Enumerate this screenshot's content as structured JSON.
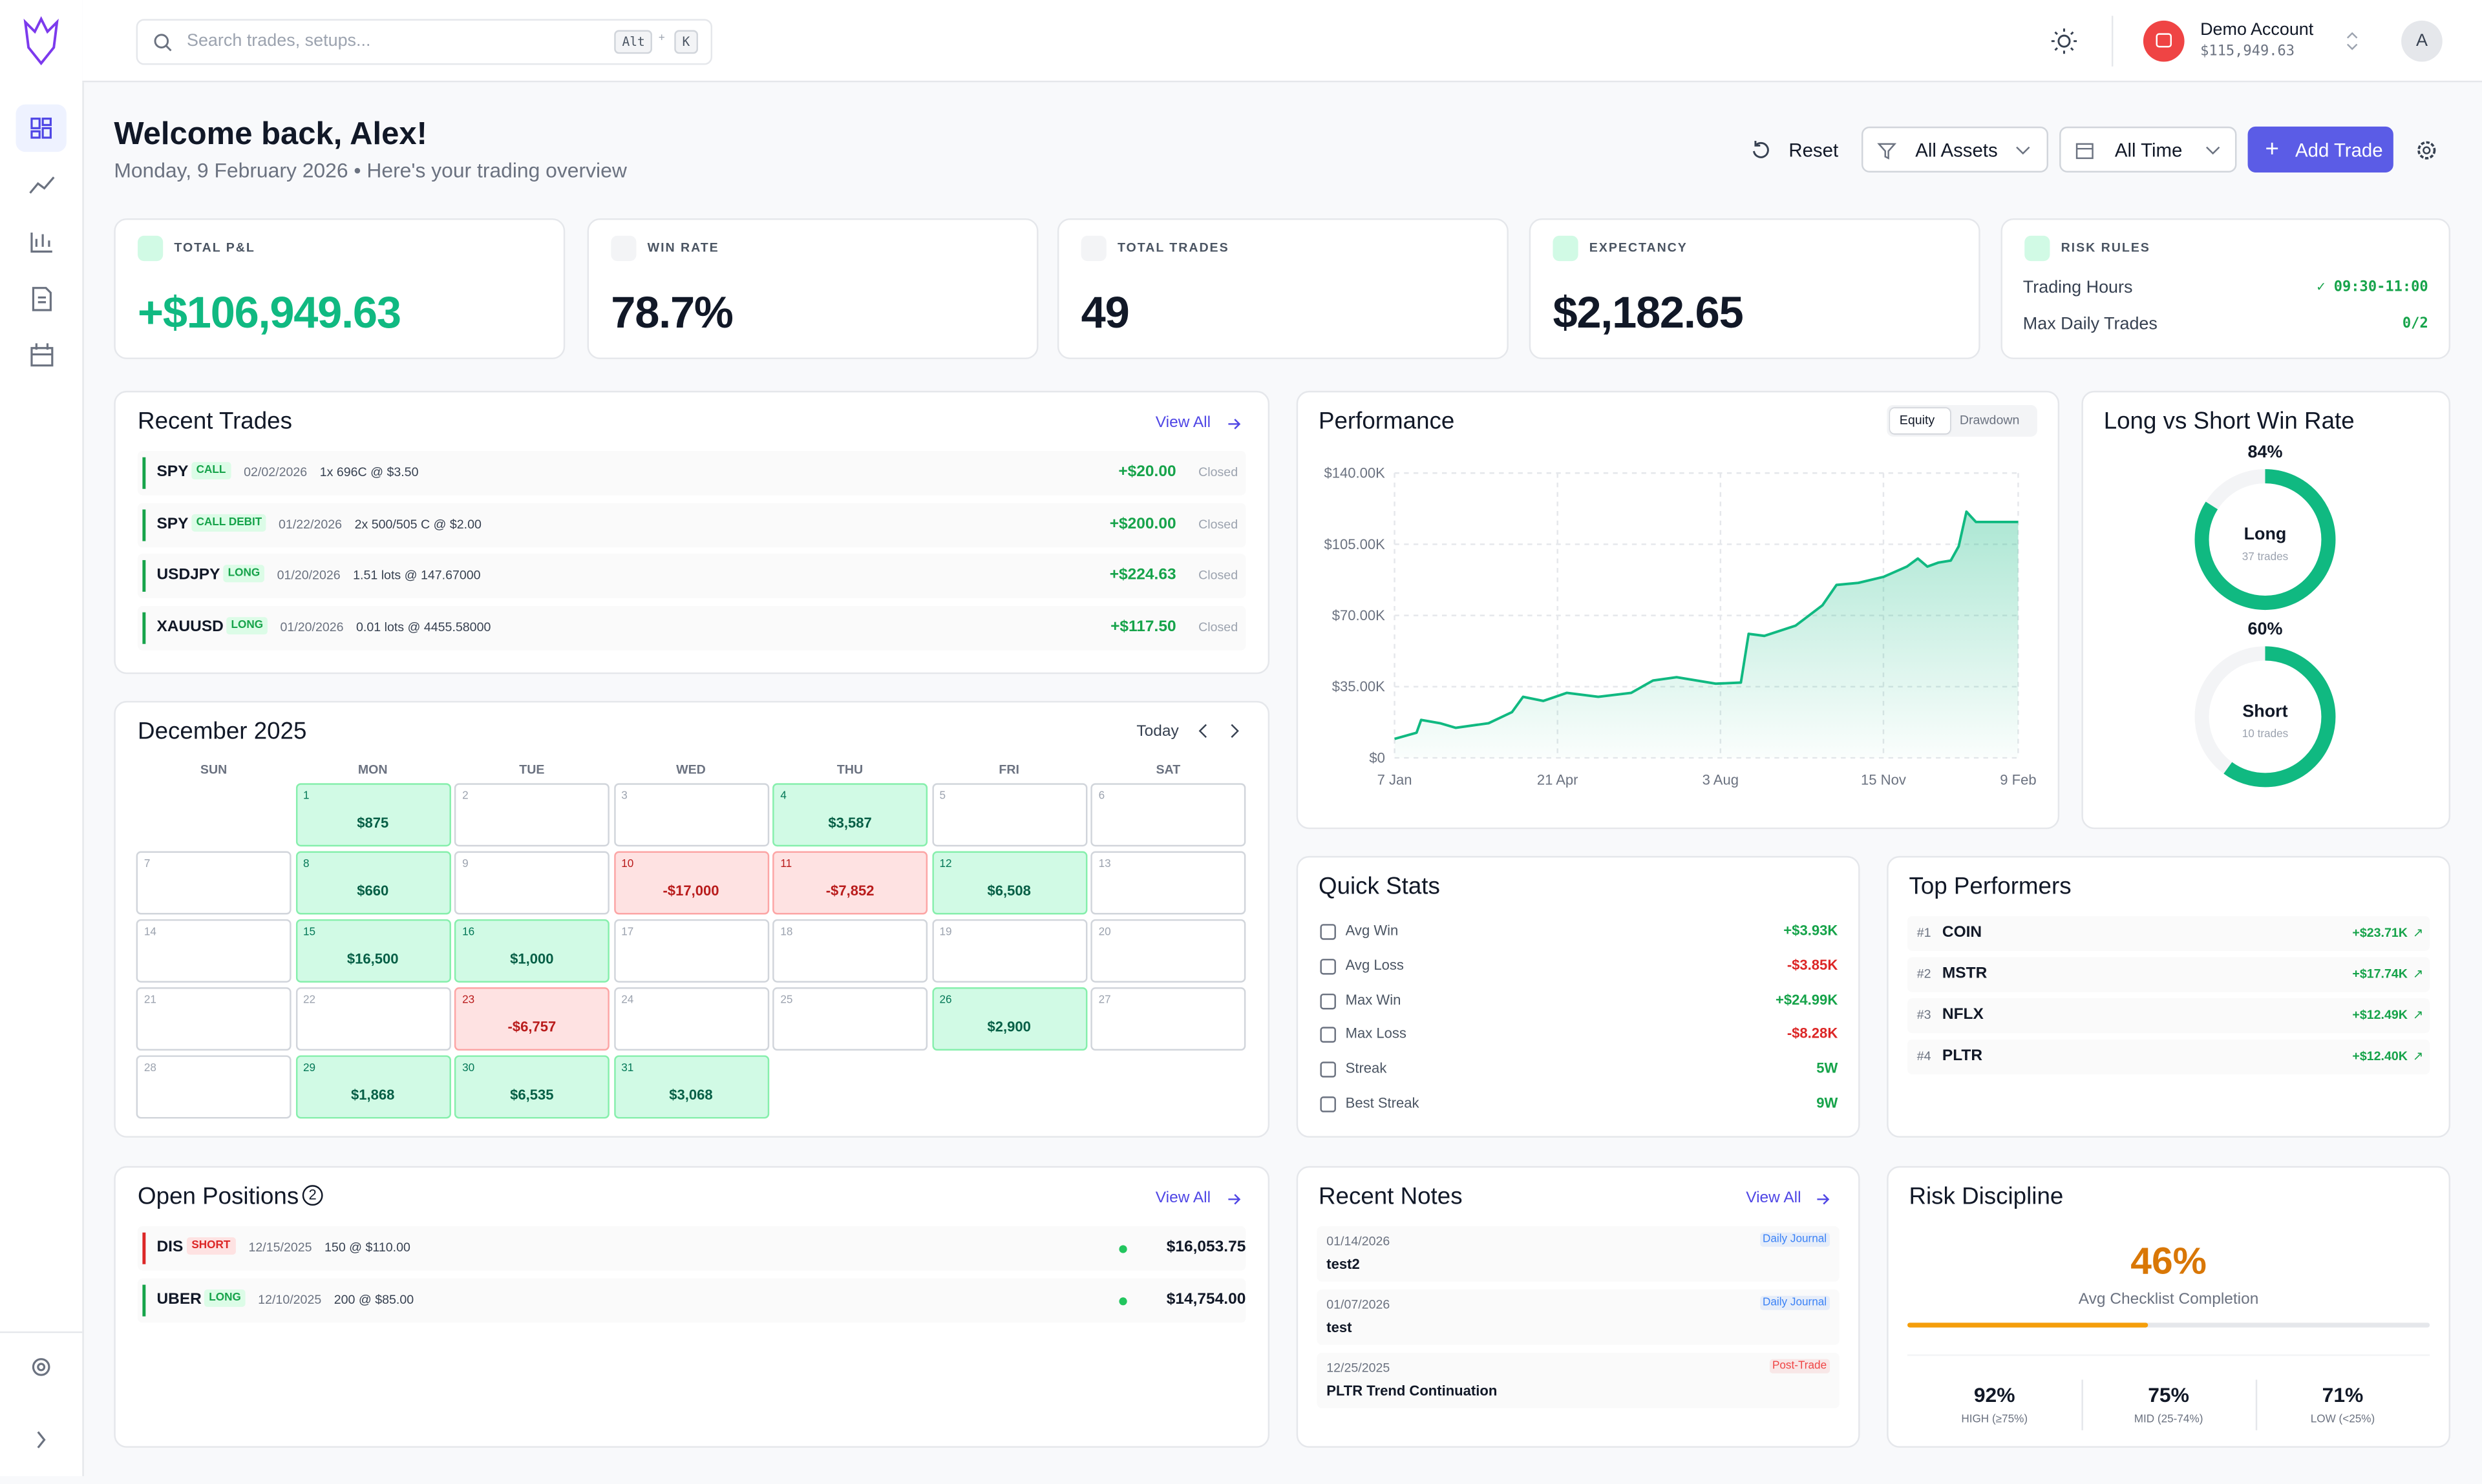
{
  "brand": {
    "search_placeholder": "Search trades, setups...",
    "shortcut": [
      "Alt",
      "+",
      "K"
    ]
  },
  "account": {
    "name": "Demo Account",
    "balance": "$115,949.63",
    "avatar": "A"
  },
  "header": {
    "title": "Welcome back, Alex!",
    "subtitle": "Monday, 9 February 2026 • Here's your trading overview"
  },
  "toolbar": {
    "reset": "Reset",
    "assets": "All Assets",
    "time": "All Time",
    "add": "Add Trade"
  },
  "kpis": [
    {
      "label": "TOTAL P&L",
      "value": "+$106,949.63",
      "color": "#10b981"
    },
    {
      "label": "WIN RATE",
      "value": "78.7%",
      "color": "#111827"
    },
    {
      "label": "TOTAL TRADES",
      "value": "49",
      "color": "#111827"
    },
    {
      "label": "EXPECTANCY",
      "value": "$2,182.65",
      "color": "#111827"
    }
  ],
  "risk_rules": {
    "label": "RISK RULES",
    "rows": [
      {
        "name": "Trading Hours",
        "value": "✓ 09:30-11:00"
      },
      {
        "name": "Max Daily Trades",
        "value": "0/2"
      }
    ]
  },
  "recent_trades": {
    "title": "Recent Trades",
    "view_all": "View All",
    "rows": [
      {
        "symbol": "SPY",
        "tag": "CALL",
        "date": "02/02/2026",
        "detail": "1x 696C @ $3.50",
        "pnl": "+$20.00",
        "status": "Closed"
      },
      {
        "symbol": "SPY",
        "tag": "CALL DEBIT",
        "date": "01/22/2026",
        "detail": "2x 500/505 C @ $2.00",
        "pnl": "+$200.00",
        "status": "Closed"
      },
      {
        "symbol": "USDJPY",
        "tag": "LONG",
        "date": "01/20/2026",
        "detail": "1.51 lots @ 147.67000",
        "pnl": "+$224.63",
        "status": "Closed"
      },
      {
        "symbol": "XAUUSD",
        "tag": "LONG",
        "date": "01/20/2026",
        "detail": "0.01 lots @ 4455.58000",
        "pnl": "+$117.50",
        "status": "Closed"
      }
    ]
  },
  "calendar": {
    "title": "December 2025",
    "today": "Today",
    "weekdays": [
      "SUN",
      "MON",
      "TUE",
      "WED",
      "THU",
      "FRI",
      "SAT"
    ],
    "days": [
      {
        "day": "1",
        "pnl": "$875"
      },
      {
        "day": "2"
      },
      {
        "day": "3"
      },
      {
        "day": "4",
        "pnl": "$3,587"
      },
      {
        "day": "5"
      },
      {
        "day": "6"
      },
      {
        "day": "7"
      },
      {
        "day": "8",
        "pnl": "$660"
      },
      {
        "day": "9"
      },
      {
        "day": "10",
        "pnl": "-$17,000"
      },
      {
        "day": "11",
        "pnl": "-$7,852"
      },
      {
        "day": "12",
        "pnl": "$6,508"
      },
      {
        "day": "13"
      },
      {
        "day": "14"
      },
      {
        "day": "15",
        "pnl": "$16,500"
      },
      {
        "day": "16",
        "pnl": "$1,000"
      },
      {
        "day": "17"
      },
      {
        "day": "18"
      },
      {
        "day": "19"
      },
      {
        "day": "20"
      },
      {
        "day": "21"
      },
      {
        "day": "22"
      },
      {
        "day": "23",
        "pnl": "-$6,757"
      },
      {
        "day": "24"
      },
      {
        "day": "25"
      },
      {
        "day": "26",
        "pnl": "$2,900"
      },
      {
        "day": "27"
      },
      {
        "day": "28"
      },
      {
        "day": "29",
        "pnl": "$1,868"
      },
      {
        "day": "30",
        "pnl": "$6,535"
      },
      {
        "day": "31",
        "pnl": "$3,068"
      }
    ]
  },
  "chart_data": [
    {
      "type": "line",
      "title": "Performance",
      "tabs": [
        "Equity",
        "Drawdown"
      ],
      "color": "#10b981",
      "grid": true,
      "x": [
        0,
        14,
        17,
        29,
        39,
        60,
        75,
        82,
        95,
        110,
        130,
        151,
        165,
        180,
        205,
        221,
        226,
        236,
        256,
        273,
        282,
        296,
        312,
        327,
        334,
        340,
        347,
        355,
        360,
        365,
        371,
        383,
        398
      ],
      "series": [
        {
          "name": "Equity",
          "color": "#10b981",
          "values": [
            9300,
            12400,
            18700,
            17000,
            14800,
            17000,
            22500,
            30000,
            28000,
            32000,
            30000,
            32000,
            38000,
            39700,
            36500,
            37000,
            61000,
            60000,
            65000,
            75000,
            85000,
            86000,
            89000,
            94000,
            98000,
            94000,
            96000,
            97000,
            104000,
            121000,
            116000,
            116000,
            116000
          ]
        }
      ],
      "xlim": [
        0,
        398
      ],
      "xticks": [
        {
          "value": 0,
          "label": "7 Jan"
        },
        {
          "value": 104,
          "label": "21 Apr"
        },
        {
          "value": 208,
          "label": "3 Aug"
        },
        {
          "value": 312,
          "label": "15 Nov"
        },
        {
          "value": 398,
          "label": "9 Feb"
        }
      ],
      "ylim": [
        0,
        140000
      ],
      "yticks": [
        {
          "value": 0,
          "label": "$0"
        },
        {
          "value": 35000,
          "label": "$35.00K"
        },
        {
          "value": 70000,
          "label": "$70.00K"
        },
        {
          "value": 105000,
          "label": "$105.00K"
        },
        {
          "value": 140000,
          "label": "$140.00K"
        }
      ]
    },
    {
      "type": "donut",
      "title": "Long vs Short Win Rate",
      "categories": [
        "Long",
        "Short"
      ],
      "values": [
        84,
        60
      ],
      "value_labels": [
        "84%",
        "60%"
      ],
      "counts": [
        "37 trades",
        "10 trades"
      ],
      "ylim": [
        0,
        100
      ],
      "color": "#10b981"
    }
  ],
  "quick_stats": {
    "title": "Quick Stats",
    "rows": [
      {
        "name": "Avg Win",
        "value": "+$3.93K",
        "color": "#16a34a"
      },
      {
        "name": "Avg Loss",
        "value": "-$3.85K",
        "color": "#dc2626"
      },
      {
        "name": "Max Win",
        "value": "+$24.99K",
        "color": "#16a34a"
      },
      {
        "name": "Max Loss",
        "value": "-$8.28K",
        "color": "#dc2626"
      },
      {
        "name": "Streak",
        "value": "5W",
        "color": "#16a34a"
      },
      {
        "name": "Best Streak",
        "value": "9W",
        "color": "#16a34a"
      }
    ]
  },
  "top_performers": {
    "title": "Top Performers",
    "rows": [
      {
        "rank": "#1",
        "symbol": "COIN",
        "pnl": "+$23.71K"
      },
      {
        "rank": "#2",
        "symbol": "MSTR",
        "pnl": "+$17.74K"
      },
      {
        "rank": "#3",
        "symbol": "NFLX",
        "pnl": "+$12.49K"
      },
      {
        "rank": "#4",
        "symbol": "PLTR",
        "pnl": "+$12.40K"
      }
    ]
  },
  "open_positions": {
    "title": "Open Positions",
    "count": "2",
    "view_all": "View All",
    "rows": [
      {
        "symbol": "DIS",
        "tag": "SHORT",
        "date": "12/15/2025",
        "detail": "150 @ $110.00",
        "value": "$16,053.75",
        "color": "#dc2626"
      },
      {
        "symbol": "UBER",
        "tag": "LONG",
        "date": "12/10/2025",
        "detail": "200 @ $85.00",
        "value": "$14,754.00",
        "color": "#16a34a"
      }
    ]
  },
  "recent_notes": {
    "title": "Recent Notes",
    "view_all": "View All",
    "rows": [
      {
        "date": "01/14/2026",
        "title": "test2",
        "tag": "Daily Journal",
        "color": "#3b82f6"
      },
      {
        "date": "01/07/2026",
        "title": "test",
        "tag": "Daily Journal",
        "color": "#3b82f6"
      },
      {
        "date": "12/25/2025",
        "title": "PLTR Trend Continuation",
        "tag": "Post-Trade",
        "color": "#ef4444"
      }
    ]
  },
  "risk_discipline": {
    "title": "Risk Discipline",
    "avg_completion": 46,
    "avg_completion_label": "46%",
    "caption": "Avg Checklist Completion",
    "buckets": [
      {
        "value": "92%",
        "label": "HIGH (≥75%)"
      },
      {
        "value": "75%",
        "label": "MID (25-74%)"
      },
      {
        "value": "71%",
        "label": "LOW (<25%)"
      }
    ]
  }
}
